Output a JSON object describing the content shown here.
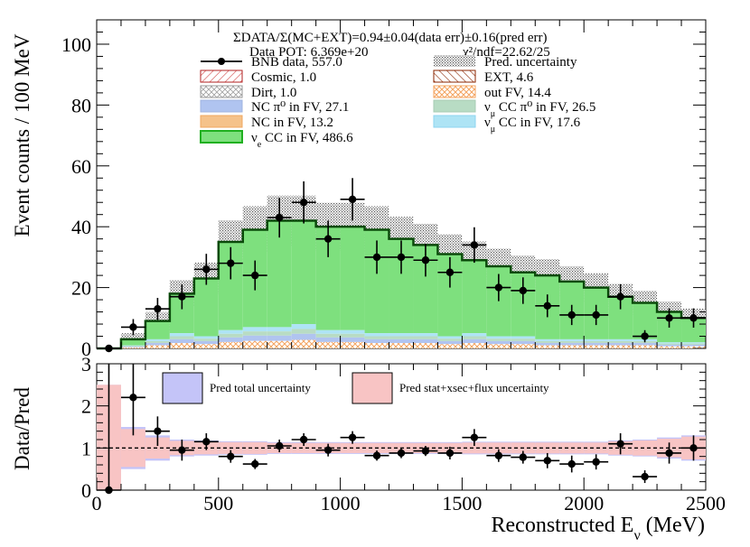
{
  "chart_data": [
    {
      "type": "bar",
      "stacked": true,
      "bin_edges": [
        0,
        100,
        200,
        300,
        400,
        500,
        600,
        700,
        800,
        900,
        1000,
        1100,
        1200,
        1300,
        1400,
        1500,
        1600,
        1700,
        1800,
        1900,
        2000,
        2100,
        2200,
        2300,
        2400,
        2500
      ],
      "xlim": [
        0,
        2500
      ],
      "ylim": [
        0,
        108
      ],
      "ylabel": "Event counts / 100 MeV",
      "yticks": [
        "0",
        "20",
        "40",
        "60",
        "80",
        "100"
      ],
      "header_lines": [
        "ΣDATA/Σ(MC+EXT)=0.94±0.04(data err)±0.16(pred err)",
        "Data POT: 6.369e+20",
        "χ²/ndf=22.62/25"
      ],
      "legend": [
        {
          "key": "data",
          "label": "BNB data, 557.0",
          "color": "#000000",
          "style": "marker"
        },
        {
          "key": "unc",
          "label": "Pred. uncertainty",
          "color": "#666666",
          "style": "hatch-dots"
        },
        {
          "key": "cosmic",
          "label": "Cosmic, 1.0",
          "color": "#b22222",
          "style": "hatch"
        },
        {
          "key": "ext",
          "label": "EXT, 4.6",
          "color": "#8b2500",
          "style": "hatch"
        },
        {
          "key": "dirt",
          "label": "Dirt, 1.0",
          "color": "#999999",
          "style": "hatch-cross"
        },
        {
          "key": "outfv",
          "label": "out FV, 14.4",
          "color": "#f4a460",
          "style": "hatch-cross"
        },
        {
          "key": "ncpi0",
          "label": "NC π⁰ in FV,  27.1",
          "color": "#b0c4f0",
          "style": "fill"
        },
        {
          "key": "numuccpi0",
          "label": "ν_μ CC π⁰ in FV, 26.5",
          "color": "#b8dcc4",
          "style": "fill"
        },
        {
          "key": "nc",
          "label": "NC in FV, 13.2",
          "color": "#f5c28a",
          "style": "fill"
        },
        {
          "key": "numucc",
          "label": "ν_μ CC in FV, 17.6",
          "color": "#aee4f5",
          "style": "fill"
        },
        {
          "key": "nuecc",
          "label": "ν_e CC in FV, 486.6",
          "color": "#7ee07e",
          "style": "fill"
        }
      ],
      "data_values": [
        0,
        7,
        13,
        17,
        26,
        28,
        24,
        43,
        48,
        36,
        49,
        30,
        30,
        29,
        25,
        34,
        20,
        19,
        14,
        11,
        11,
        17,
        4,
        10,
        10
      ],
      "prediction_total": [
        0,
        3,
        9,
        18,
        23,
        35,
        39,
        42,
        42,
        40,
        40,
        39,
        36,
        34,
        31,
        29,
        27,
        25,
        24,
        22,
        20,
        17,
        15,
        12,
        10
      ],
      "background_total": [
        0,
        1,
        3,
        5,
        4,
        6,
        7,
        7,
        8,
        6,
        6,
        5,
        5,
        5,
        4,
        5,
        4,
        4,
        3,
        3,
        3,
        3,
        3,
        2,
        2
      ],
      "data_err_x": 50
    },
    {
      "type": "scatter",
      "ylabel": "Data/Pred",
      "xlabel": "Reconstructed E_ν (MeV)",
      "xlim": [
        0,
        2500
      ],
      "ylim": [
        0,
        3
      ],
      "xticks": [
        "0",
        "500",
        "1000",
        "1500",
        "2000",
        "2500"
      ],
      "yticks": [
        "0",
        "1",
        "2",
        "3"
      ],
      "legend": [
        {
          "label": "Pred total uncertainty",
          "color": "#c4c4f8"
        },
        {
          "label": "Pred stat+xsec+flux uncertainty",
          "color": "#f8c4c4"
        }
      ],
      "x": [
        50,
        150,
        250,
        350,
        450,
        550,
        650,
        750,
        850,
        950,
        1050,
        1150,
        1250,
        1350,
        1450,
        1550,
        1650,
        1750,
        1850,
        1950,
        2050,
        2150,
        2250,
        2350,
        2450
      ],
      "ratio": [
        0,
        2.2,
        1.4,
        0.95,
        1.15,
        0.8,
        0.62,
        1.05,
        1.2,
        0.95,
        1.25,
        0.82,
        0.88,
        0.93,
        0.88,
        1.25,
        0.82,
        0.78,
        0.7,
        0.62,
        0.67,
        1.1,
        0.32,
        0.88,
        1.0
      ],
      "ratio_err": [
        0,
        0.9,
        0.35,
        0.25,
        0.2,
        0.15,
        0.12,
        0.15,
        0.15,
        0.15,
        0.15,
        0.12,
        0.12,
        0.12,
        0.15,
        0.2,
        0.15,
        0.15,
        0.18,
        0.2,
        0.18,
        0.25,
        0.15,
        0.25,
        0.3
      ],
      "band_total": [
        1.5,
        0.5,
        0.3,
        0.2,
        0.18,
        0.16,
        0.16,
        0.14,
        0.14,
        0.14,
        0.14,
        0.14,
        0.14,
        0.14,
        0.14,
        0.15,
        0.15,
        0.15,
        0.15,
        0.15,
        0.15,
        0.18,
        0.2,
        0.25,
        0.3
      ],
      "band_stat": [
        1.5,
        0.45,
        0.25,
        0.17,
        0.15,
        0.14,
        0.14,
        0.12,
        0.12,
        0.12,
        0.12,
        0.12,
        0.12,
        0.12,
        0.12,
        0.13,
        0.13,
        0.13,
        0.13,
        0.13,
        0.13,
        0.16,
        0.18,
        0.22,
        0.27
      ],
      "reference_line": 1
    }
  ]
}
